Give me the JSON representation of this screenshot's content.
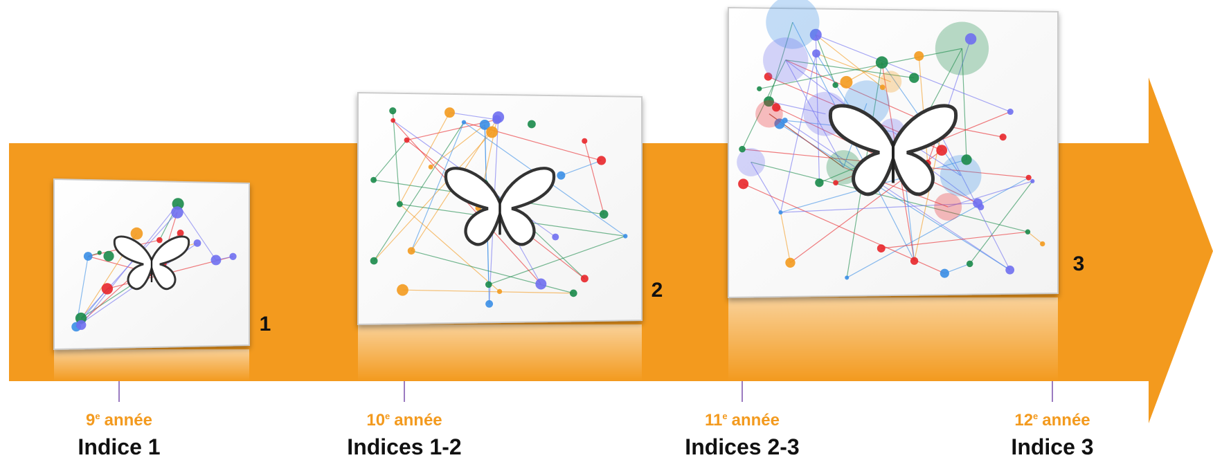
{
  "panels": [
    {
      "label": "1"
    },
    {
      "label": "2"
    },
    {
      "label": "3"
    }
  ],
  "timeline": [
    {
      "year": "9",
      "sup": "e",
      "word": "année",
      "index": "Indice 1"
    },
    {
      "year": "10",
      "sup": "e",
      "word": "année",
      "index": "Indices 1-2"
    },
    {
      "year": "11",
      "sup": "e",
      "word": "année",
      "index": "Indices 2-3"
    },
    {
      "year": "12",
      "sup": "e",
      "word": "année",
      "index": "Indice 3"
    }
  ]
}
